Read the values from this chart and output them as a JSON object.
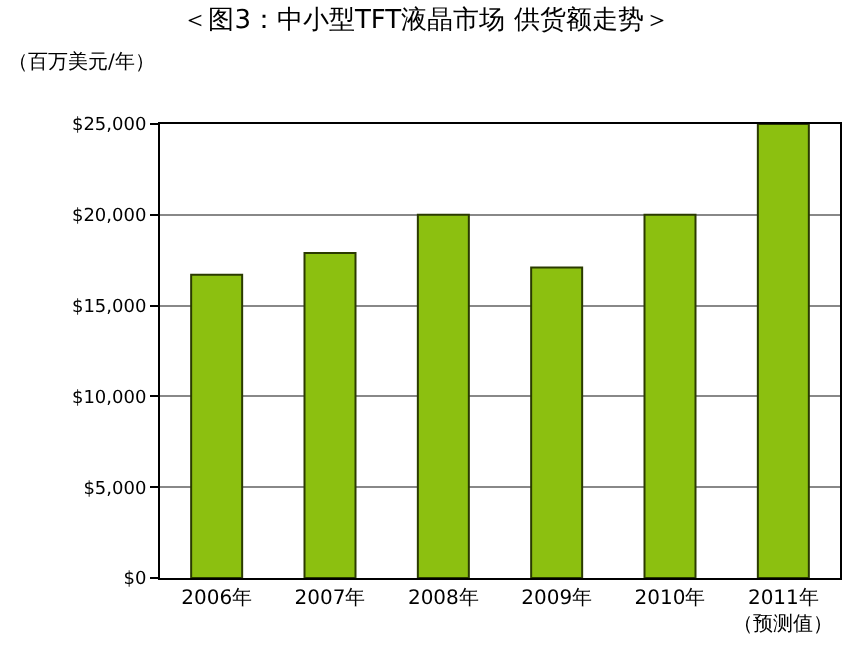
{
  "chart_data": {
    "type": "bar",
    "title": "＜图3：中小型TFT液晶市场 供货额走势＞",
    "ylabel": "（百万美元/年）",
    "categories": [
      "2006年",
      "2007年",
      "2008年",
      "2009年",
      "2010年",
      "2011年（预测值）"
    ],
    "series": [
      {
        "color": "#8cc010",
        "values": [
          16700,
          17900,
          20000,
          17100,
          20000,
          25000
        ]
      }
    ],
    "ylim": [
      0,
      25000
    ],
    "yticks": [
      {
        "value": 0,
        "label": "$0"
      },
      {
        "value": 5000,
        "label": "$5,000"
      },
      {
        "value": 10000,
        "label": "$10,000"
      },
      {
        "value": 15000,
        "label": "$15,000"
      },
      {
        "value": 20000,
        "label": "$20,000"
      },
      {
        "value": 25000,
        "label": "$25,000"
      }
    ],
    "grid": "y"
  }
}
